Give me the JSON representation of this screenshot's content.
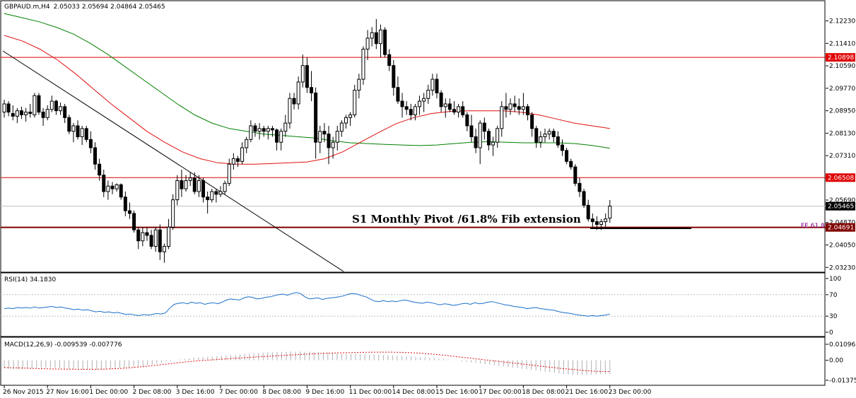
{
  "chart_data": {
    "type": "candlestick",
    "symbol": "GBPAUD.m,H4",
    "ohlc_header": [
      "2.05033",
      "2.05694",
      "2.04864",
      "2.05465"
    ],
    "price_ticks": [
      "2.12230",
      "2.11410",
      "2.10590",
      "2.09770",
      "2.08950",
      "2.08130",
      "2.07310",
      "2.05690",
      "2.04870",
      "2.04050",
      "2.03230"
    ],
    "price_ylim": [
      2.0316,
      2.1258
    ],
    "x_labels": [
      "26 Nov 2015",
      "27 Nov 16:00",
      "1 Dec 00:00",
      "2 Dec 08:00",
      "3 Dec 16:00",
      "7 Dec 00:00",
      "8 Dec 08:00",
      "9 Dec 16:00",
      "11 Dec 00:00",
      "14 Dec 08:00",
      "15 Dec 16:00",
      "17 Dec 00:00",
      "18 Dec 08:00",
      "21 Dec 16:00",
      "23 Dec 00:00"
    ],
    "x_label_bar_index": [
      0,
      10,
      20,
      30,
      40,
      50,
      60,
      70,
      80,
      90,
      100,
      110,
      120,
      130,
      140
    ],
    "candles": [
      [
        2.089,
        2.0935,
        2.087,
        2.092
      ],
      [
        2.092,
        2.093,
        2.0875,
        2.089
      ],
      [
        2.0885,
        2.0915,
        2.086,
        2.0875
      ],
      [
        2.0875,
        2.0905,
        2.085,
        2.0895
      ],
      [
        2.0895,
        2.091,
        2.0865,
        2.088
      ],
      [
        2.088,
        2.0905,
        2.0855,
        2.089
      ],
      [
        2.089,
        2.092,
        2.087,
        2.0885
      ],
      [
        2.088,
        2.096,
        2.087,
        2.095
      ],
      [
        2.095,
        2.096,
        2.088,
        2.089
      ],
      [
        2.089,
        2.0905,
        2.084,
        2.087
      ],
      [
        2.087,
        2.0915,
        2.086,
        2.09
      ],
      [
        2.09,
        2.095,
        2.089,
        2.093
      ],
      [
        2.093,
        2.0935,
        2.088,
        2.0895
      ],
      [
        2.0895,
        2.0925,
        2.088,
        2.091
      ],
      [
        2.091,
        2.092,
        2.085,
        2.087
      ],
      [
        2.087,
        2.088,
        2.081,
        2.082
      ],
      [
        2.082,
        2.085,
        2.078,
        2.084
      ],
      [
        2.084,
        2.086,
        2.079,
        2.08
      ],
      [
        2.08,
        2.084,
        2.077,
        2.083
      ],
      [
        2.083,
        2.084,
        2.078,
        2.079
      ],
      [
        2.079,
        2.082,
        2.074,
        2.076
      ],
      [
        2.076,
        2.078,
        2.068,
        2.07
      ],
      [
        2.07,
        2.072,
        2.064,
        2.066
      ],
      [
        2.066,
        2.068,
        2.058,
        2.06
      ],
      [
        2.06,
        2.064,
        2.057,
        2.062
      ],
      [
        2.062,
        2.0635,
        2.059,
        2.061
      ],
      [
        2.061,
        2.063,
        2.06,
        2.0625
      ],
      [
        2.0625,
        2.063,
        2.057,
        2.058
      ],
      [
        2.058,
        2.06,
        2.051,
        2.053
      ],
      [
        2.053,
        2.056,
        2.05,
        2.052
      ],
      [
        2.052,
        2.053,
        2.045,
        2.046
      ],
      [
        2.046,
        2.047,
        2.039,
        2.042
      ],
      [
        2.042,
        2.047,
        2.04,
        2.045
      ],
      [
        2.045,
        2.047,
        2.042,
        2.044
      ],
      [
        2.044,
        2.046,
        2.039,
        2.04
      ],
      [
        2.04,
        2.047,
        2.038,
        2.046
      ],
      [
        2.046,
        2.048,
        2.035,
        2.038
      ],
      [
        2.038,
        2.041,
        2.034,
        2.04
      ],
      [
        2.04,
        2.05,
        2.039,
        2.047
      ],
      [
        2.047,
        2.059,
        2.046,
        2.057
      ],
      [
        2.057,
        2.066,
        2.055,
        2.064
      ],
      [
        2.064,
        2.068,
        2.058,
        2.061
      ],
      [
        2.061,
        2.066,
        2.06,
        2.064
      ],
      [
        2.064,
        2.067,
        2.062,
        2.065
      ],
      [
        2.065,
        2.067,
        2.059,
        2.06
      ],
      [
        2.06,
        2.066,
        2.058,
        2.064
      ],
      [
        2.064,
        2.065,
        2.056,
        2.058
      ],
      [
        2.058,
        2.06,
        2.052,
        2.057
      ],
      [
        2.057,
        2.061,
        2.056,
        2.06
      ],
      [
        2.06,
        2.061,
        2.056,
        2.059
      ],
      [
        2.059,
        2.062,
        2.058,
        2.06
      ],
      [
        2.06,
        2.064,
        2.059,
        2.063
      ],
      [
        2.063,
        2.072,
        2.062,
        2.07
      ],
      [
        2.07,
        2.074,
        2.068,
        2.072
      ],
      [
        2.072,
        2.073,
        2.069,
        2.071
      ],
      [
        2.071,
        2.078,
        2.07,
        2.076
      ],
      [
        2.076,
        2.08,
        2.074,
        2.079
      ],
      [
        2.079,
        2.086,
        2.078,
        2.084
      ],
      [
        2.084,
        2.085,
        2.08,
        2.082
      ],
      [
        2.082,
        2.085,
        2.079,
        2.083
      ],
      [
        2.083,
        2.084,
        2.08,
        2.082
      ],
      [
        2.082,
        2.084,
        2.079,
        2.083
      ],
      [
        2.083,
        2.084,
        2.08,
        2.0825
      ],
      [
        2.0825,
        2.083,
        2.075,
        2.078
      ],
      [
        2.078,
        2.083,
        2.075,
        2.082
      ],
      [
        2.082,
        2.088,
        2.08,
        2.085
      ],
      [
        2.085,
        2.096,
        2.083,
        2.094
      ],
      [
        2.094,
        2.096,
        2.09,
        2.092
      ],
      [
        2.092,
        2.102,
        2.09,
        2.1
      ],
      [
        2.1,
        2.11,
        2.098,
        2.106
      ],
      [
        2.106,
        2.109,
        2.096,
        2.098
      ],
      [
        2.098,
        2.104,
        2.093,
        2.096
      ],
      [
        2.096,
        2.098,
        2.072,
        2.078
      ],
      [
        2.078,
        2.084,
        2.074,
        2.082
      ],
      [
        2.082,
        2.085,
        2.078,
        2.081
      ],
      [
        2.081,
        2.084,
        2.07,
        2.076
      ],
      [
        2.076,
        2.08,
        2.072,
        2.078
      ],
      [
        2.078,
        2.084,
        2.075,
        2.082
      ],
      [
        2.082,
        2.086,
        2.08,
        2.085
      ],
      [
        2.085,
        2.088,
        2.083,
        2.087
      ],
      [
        2.087,
        2.089,
        2.084,
        2.088
      ],
      [
        2.088,
        2.099,
        2.087,
        2.097
      ],
      [
        2.097,
        2.103,
        2.094,
        2.101
      ],
      [
        2.101,
        2.113,
        2.099,
        2.112
      ],
      [
        2.112,
        2.119,
        2.108,
        2.116
      ],
      [
        2.116,
        2.12,
        2.113,
        2.118
      ],
      [
        2.118,
        2.123,
        2.112,
        2.114
      ],
      [
        2.114,
        2.121,
        2.109,
        2.119
      ],
      [
        2.119,
        2.12,
        2.109,
        2.11
      ],
      [
        2.11,
        2.112,
        2.104,
        2.106
      ],
      [
        2.106,
        2.108,
        2.095,
        2.098
      ],
      [
        2.098,
        2.102,
        2.092,
        2.093
      ],
      [
        2.093,
        2.096,
        2.087,
        2.091
      ],
      [
        2.091,
        2.093,
        2.088,
        2.09
      ],
      [
        2.09,
        2.092,
        2.086,
        2.088
      ],
      [
        2.088,
        2.092,
        2.086,
        2.091
      ],
      [
        2.091,
        2.095,
        2.088,
        2.093
      ],
      [
        2.093,
        2.096,
        2.089,
        2.094
      ],
      [
        2.094,
        2.099,
        2.092,
        2.097
      ],
      [
        2.097,
        2.103,
        2.095,
        2.101
      ],
      [
        2.101,
        2.103,
        2.094,
        2.096
      ],
      [
        2.096,
        2.097,
        2.089,
        2.091
      ],
      [
        2.091,
        2.094,
        2.087,
        2.092
      ],
      [
        2.092,
        2.094,
        2.089,
        2.09
      ],
      [
        2.09,
        2.093,
        2.088,
        2.089
      ],
      [
        2.089,
        2.092,
        2.087,
        2.091
      ],
      [
        2.091,
        2.093,
        2.087,
        2.088
      ],
      [
        2.088,
        2.089,
        2.082,
        2.084
      ],
      [
        2.084,
        2.088,
        2.078,
        2.08
      ],
      [
        2.08,
        2.083,
        2.074,
        2.076
      ],
      [
        2.076,
        2.086,
        2.07,
        2.085
      ],
      [
        2.085,
        2.087,
        2.079,
        2.082
      ],
      [
        2.082,
        2.083,
        2.075,
        2.077
      ],
      [
        2.077,
        2.08,
        2.073,
        2.078
      ],
      [
        2.078,
        2.084,
        2.076,
        2.083
      ],
      [
        2.083,
        2.093,
        2.08,
        2.091
      ],
      [
        2.091,
        2.096,
        2.087,
        2.09
      ],
      [
        2.09,
        2.094,
        2.088,
        2.092
      ],
      [
        2.092,
        2.095,
        2.089,
        2.091
      ],
      [
        2.091,
        2.094,
        2.088,
        2.09
      ],
      [
        2.09,
        2.096,
        2.088,
        2.091
      ],
      [
        2.091,
        2.092,
        2.086,
        2.088
      ],
      [
        2.088,
        2.089,
        2.08,
        2.083
      ],
      [
        2.083,
        2.084,
        2.076,
        2.078
      ],
      [
        2.078,
        2.082,
        2.076,
        2.08
      ],
      [
        2.08,
        2.083,
        2.078,
        2.081
      ],
      [
        2.081,
        2.083,
        2.079,
        2.082
      ],
      [
        2.082,
        2.083,
        2.078,
        2.08
      ],
      [
        2.08,
        2.082,
        2.076,
        2.077
      ],
      [
        2.077,
        2.079,
        2.073,
        2.075
      ],
      [
        2.075,
        2.076,
        2.07,
        2.071
      ],
      [
        2.071,
        2.072,
        2.068,
        2.069
      ],
      [
        2.069,
        2.07,
        2.062,
        2.063
      ],
      [
        2.063,
        2.065,
        2.058,
        2.06
      ],
      [
        2.06,
        2.061,
        2.054,
        2.055
      ],
      [
        2.055,
        2.057,
        2.049,
        2.05
      ],
      [
        2.05,
        2.052,
        2.047,
        2.049
      ],
      [
        2.049,
        2.051,
        2.046,
        2.048
      ],
      [
        2.048,
        2.05,
        2.046,
        2.049
      ],
      [
        2.049,
        2.052,
        2.047,
        2.05
      ],
      [
        2.0503,
        2.0569,
        2.0486,
        2.0547
      ]
    ],
    "moving_averages": [
      {
        "color": "#008000",
        "values": [
          2.125,
          2.1235,
          2.122,
          2.12,
          2.1175,
          2.114,
          2.11,
          2.1055,
          2.101,
          2.0965,
          2.092,
          2.088,
          2.085,
          2.083,
          2.082,
          2.081,
          2.0805,
          2.08,
          2.0795,
          2.0785,
          2.0778,
          2.0775,
          2.0772,
          2.077,
          2.0768,
          2.077,
          2.0775,
          2.078,
          2.0782,
          2.078,
          2.0778,
          2.0778,
          2.0778,
          2.0775,
          2.0768,
          2.0758
        ]
      },
      {
        "color": "#e01010",
        "values": [
          2.117,
          2.115,
          2.112,
          2.108,
          2.103,
          2.0975,
          2.092,
          2.087,
          2.082,
          2.078,
          2.0745,
          2.072,
          2.0705,
          2.07,
          2.07,
          2.0702,
          2.0705,
          2.0708,
          2.072,
          2.0745,
          2.078,
          2.0815,
          2.0848,
          2.087,
          2.0885,
          2.0892,
          2.0895,
          2.0895,
          2.0895,
          2.089,
          2.088,
          2.0865,
          2.085,
          2.084,
          2.083
        ]
      }
    ],
    "horizontal_lines": [
      {
        "price": 2.10898,
        "label": "2.10898",
        "color": "#e00000"
      },
      {
        "price": 2.06508,
        "label": "2.06508",
        "color": "#e00000"
      },
      {
        "price": 2.04691,
        "label": "2.04691",
        "color": "#800000"
      }
    ],
    "fib_label": "FE 61.8",
    "current_price": "2.05465",
    "annotation": "S1 Monthly Pivot /61.8% Fib extension",
    "rsi": {
      "title": "RSI(14) 34.1830",
      "ticks": [
        "100",
        "70",
        "30",
        "0"
      ],
      "color": "#1a6ec8",
      "values": [
        44,
        45,
        44,
        46,
        45,
        46,
        45,
        47,
        45,
        46,
        47,
        48,
        46,
        47,
        45,
        44,
        42,
        43,
        41,
        42,
        40,
        38,
        39,
        37,
        38,
        36,
        37,
        35,
        33,
        34,
        32,
        31,
        33,
        32,
        33,
        35,
        34,
        36,
        45,
        52,
        54,
        55,
        53,
        56,
        54,
        55,
        52,
        54,
        55,
        53,
        56,
        60,
        62,
        61,
        60,
        64,
        66,
        65,
        62,
        63,
        65,
        66,
        68,
        70,
        71,
        69,
        72,
        74,
        72,
        66,
        62,
        63,
        64,
        61,
        63,
        64,
        65,
        66,
        68,
        71,
        72,
        71,
        68,
        66,
        62,
        58,
        57,
        59,
        57,
        58,
        57,
        59,
        60,
        58,
        56,
        55,
        54,
        56,
        55,
        53,
        51,
        53,
        52,
        50,
        51,
        53,
        54,
        52,
        55,
        53,
        54,
        56,
        57,
        55,
        53,
        51,
        50,
        48,
        47,
        46,
        44,
        45,
        46,
        44,
        43,
        42,
        41,
        39,
        37,
        36,
        35,
        33,
        32,
        31,
        30,
        31,
        30,
        31,
        32,
        34
      ]
    },
    "macd": {
      "title": "MACD(12,26,9) -0.009539 -0.007776",
      "ticks": [
        "0.01096",
        "0.00",
        "-0.013751"
      ],
      "ylim": [
        -0.01375,
        0.01096
      ],
      "hist": [
        -0.0055,
        -0.0058,
        -0.006,
        -0.0062,
        -0.006,
        -0.0058,
        -0.0056,
        -0.0054,
        -0.0052,
        -0.005,
        -0.0052,
        -0.0054,
        -0.0056,
        -0.0058,
        -0.006,
        -0.0062,
        -0.0064,
        -0.0065,
        -0.0066,
        -0.0066,
        -0.0065,
        -0.0064,
        -0.0062,
        -0.006,
        -0.0058,
        -0.0055,
        -0.0052,
        -0.005,
        -0.0048,
        -0.0045,
        -0.004,
        -0.0034,
        -0.0028,
        -0.0022,
        -0.0016,
        -0.001,
        -0.0005,
        0.0,
        0.0005,
        0.001,
        0.0014,
        0.0018,
        0.002,
        0.0022,
        0.0024,
        0.0026,
        0.0028,
        0.003,
        0.0032,
        0.0034,
        0.0036,
        0.004,
        0.0044,
        0.0046,
        0.0048,
        0.005,
        0.0052,
        0.0054,
        0.0055,
        0.0056,
        0.0057,
        0.0058,
        0.0059,
        0.006,
        0.006,
        0.0059,
        0.0058,
        0.0057,
        0.0056,
        0.0054,
        0.0052,
        0.005,
        0.0048,
        0.0046,
        0.0045,
        0.0044,
        0.0043,
        0.0042,
        0.0041,
        0.004,
        0.0039,
        0.0038,
        0.0037,
        0.0036,
        0.0034,
        0.0032,
        0.003,
        0.0028,
        0.0026,
        0.0024,
        0.0022,
        0.002,
        0.0018,
        0.0016,
        0.0013,
        0.001,
        0.0006,
        0.0002,
        -0.0002,
        -0.0006,
        -0.001,
        -0.0014,
        -0.0018,
        -0.0022,
        -0.0026,
        -0.003,
        -0.0034,
        -0.0038,
        -0.0042,
        -0.0046,
        -0.005,
        -0.0054,
        -0.0058,
        -0.0062,
        -0.0066,
        -0.007,
        -0.0074,
        -0.0078,
        -0.0082,
        -0.0086,
        -0.009,
        -0.0094,
        -0.0098,
        -0.01,
        -0.0101,
        -0.01,
        -0.0099,
        -0.0098,
        -0.0097,
        -0.0096,
        -0.0095,
        -0.0095
      ],
      "signal": [
        -0.005,
        -0.0052,
        -0.0055,
        -0.0058,
        -0.006,
        -0.0061,
        -0.0062,
        -0.0062,
        -0.006,
        -0.0056,
        -0.005,
        -0.0042,
        -0.0032,
        -0.0022,
        -0.0012,
        -0.0004,
        0.0002,
        0.0008,
        0.0014,
        0.002,
        0.0025,
        0.003,
        0.0035,
        0.004,
        0.0044,
        0.0048,
        0.0051,
        0.0053,
        0.0055,
        0.0056,
        0.0056,
        0.0054,
        0.005,
        0.0044,
        0.0036,
        0.0026,
        0.0016,
        0.0006,
        -0.0004,
        -0.0014,
        -0.0024,
        -0.0034,
        -0.0044,
        -0.0054,
        -0.0062,
        -0.007,
        -0.0076,
        -0.0078
      ]
    }
  }
}
